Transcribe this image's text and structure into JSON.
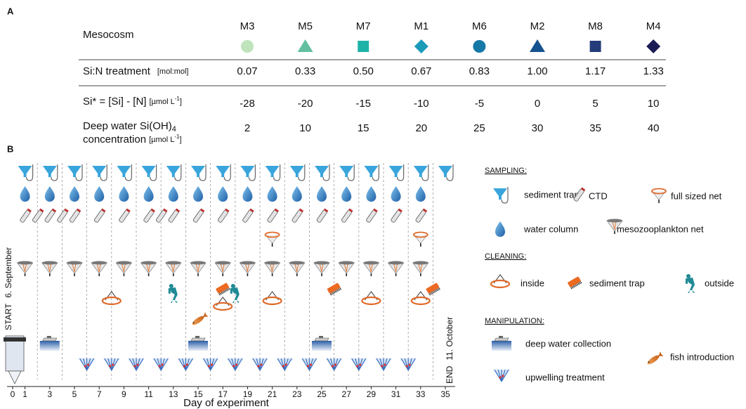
{
  "panel_a": {
    "label": "A",
    "row_header": "Mesocosm",
    "mesocosms": [
      {
        "name": "M3",
        "shape": "circle",
        "color": "#bfe4bc"
      },
      {
        "name": "M5",
        "shape": "triangle",
        "color": "#62c0a0"
      },
      {
        "name": "M7",
        "shape": "square",
        "color": "#1db3a8"
      },
      {
        "name": "M1",
        "shape": "diamond",
        "color": "#1c9bb9"
      },
      {
        "name": "M6",
        "shape": "circle",
        "color": "#1678a7"
      },
      {
        "name": "M2",
        "shape": "triangle",
        "color": "#165290"
      },
      {
        "name": "M8",
        "shape": "square",
        "color": "#243c7a"
      },
      {
        "name": "M4",
        "shape": "diamond",
        "color": "#1b1c56"
      }
    ],
    "sin": {
      "label": "Si:N treatment",
      "unit": "[mol:mol]",
      "values": [
        "0.07",
        "0.33",
        "0.50",
        "0.67",
        "0.83",
        "1.00",
        "1.17",
        "1.33"
      ]
    },
    "sistar": {
      "label": "Si* = [Si] - [N]",
      "unit": "[µmol L",
      "unit_sup": "-1",
      "unit_end": "]",
      "values": [
        "-28",
        "-20",
        "-15",
        "-10",
        "-5",
        "0",
        "5",
        "10"
      ]
    },
    "deep": {
      "label": "Deep water Si(OH)",
      "label_sub": "4",
      "label2": "concentration",
      "unit": "[µmol L",
      "unit_sup": "-1",
      "unit_end": "]",
      "values": [
        "2",
        "10",
        "15",
        "20",
        "25",
        "30",
        "35",
        "40"
      ]
    }
  },
  "panel_b": {
    "label": "B",
    "start": "START",
    "start_date": "6. September",
    "end": "END",
    "end_date": "11. October",
    "x_label": "Day of experiment",
    "xticks": [
      0,
      1,
      3,
      5,
      7,
      9,
      11,
      13,
      15,
      17,
      19,
      21,
      23,
      25,
      27,
      29,
      31,
      33,
      35
    ],
    "events": {
      "sediment_trap": [
        1,
        3,
        5,
        7,
        9,
        11,
        13,
        15,
        17,
        19,
        21,
        23,
        25,
        27,
        29,
        31,
        33,
        35
      ],
      "water_column": [
        1,
        3,
        5,
        7,
        9,
        11,
        13,
        15,
        17,
        19,
        21,
        23,
        25,
        27,
        29,
        31,
        33
      ],
      "ctd": [
        1,
        2,
        3,
        4,
        5,
        7,
        9,
        11,
        12,
        13,
        15,
        17,
        19,
        21,
        23,
        25,
        27,
        29,
        31,
        33
      ],
      "full_sized_net": [
        21,
        33
      ],
      "mesozooplankton_net": [
        1,
        3,
        5,
        7,
        9,
        11,
        13,
        15,
        17,
        19,
        21,
        23,
        25,
        27,
        29,
        31,
        33
      ],
      "clean_inside": [
        8,
        17,
        21,
        29,
        33
      ],
      "clean_sediment_trap": [
        17,
        26,
        34
      ],
      "clean_outside": [
        13,
        18
      ],
      "fish_introduction": [
        15
      ],
      "deep_water_collection": [
        3,
        15,
        25
      ],
      "upwelling_treatment": [
        6,
        8,
        10,
        12,
        14,
        16,
        18,
        20,
        22,
        24,
        26,
        28,
        30,
        32
      ]
    },
    "legend": {
      "sampling": "SAMPLING:",
      "sediment_trap": "sediment trap",
      "ctd": "CTD",
      "full_sized_net": "full sized net",
      "water_column": "water column",
      "mesozooplankton_net": "mesozooplankton net",
      "cleaning": "CLEANING:",
      "clean_inside": "inside",
      "clean_sediment_trap": "sediment trap",
      "clean_outside": "outside",
      "manipulation": "MANIPULATION:",
      "deep_water_collection": "deep water collection",
      "fish_introduction": "fish introduction",
      "upwelling_treatment": "upwelling treatment"
    }
  }
}
